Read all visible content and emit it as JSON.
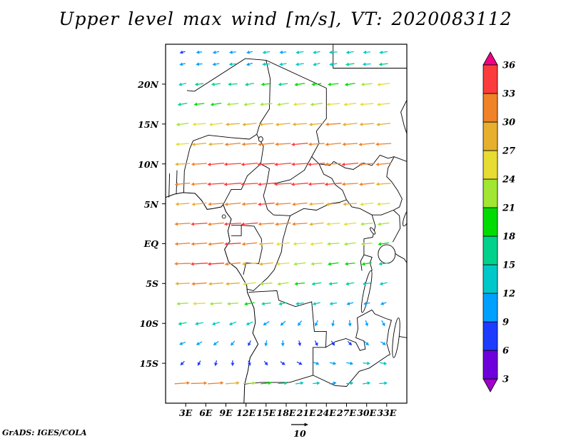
{
  "title": "Upper level max wind [m/s], VT: 2020083112",
  "attribution": "GrADS: IGES/COLA",
  "reference_vector": {
    "label": "10",
    "value": 10,
    "units": "m/s"
  },
  "axes": {
    "lat_ticks": [
      {
        "label": "20N",
        "value": 20
      },
      {
        "label": "15N",
        "value": 15
      },
      {
        "label": "10N",
        "value": 10
      },
      {
        "label": "5N",
        "value": 5
      },
      {
        "label": "EQ",
        "value": 0
      },
      {
        "label": "5S",
        "value": -5
      },
      {
        "label": "10S",
        "value": -10
      },
      {
        "label": "15S",
        "value": -15
      }
    ],
    "lon_ticks": [
      {
        "label": "3E",
        "value": 3
      },
      {
        "label": "6E",
        "value": 6
      },
      {
        "label": "9E",
        "value": 9
      },
      {
        "label": "12E",
        "value": 12
      },
      {
        "label": "15E",
        "value": 15
      },
      {
        "label": "18E",
        "value": 18
      },
      {
        "label": "21E",
        "value": 21
      },
      {
        "label": "24E",
        "value": 24
      },
      {
        "label": "27E",
        "value": 27
      },
      {
        "label": "30E",
        "value": 30
      },
      {
        "label": "33E",
        "value": 33
      }
    ],
    "lon_range": [
      0,
      36
    ],
    "lat_range": [
      -20,
      25
    ]
  },
  "chart_data": {
    "type": "vector_field",
    "title": "Upper level max wind",
    "units": "m/s",
    "valid_time": "2020083112",
    "legend_position": "right",
    "colorbar": {
      "levels": [
        3,
        6,
        9,
        12,
        15,
        18,
        21,
        24,
        27,
        30,
        33,
        36
      ],
      "colors": [
        "#a000c8",
        "#6e00dc",
        "#1e3cff",
        "#00a0ff",
        "#00c8c8",
        "#00d28c",
        "#00dc00",
        "#a0e632",
        "#e6dc32",
        "#e6af2d",
        "#f08228",
        "#fa3c3c",
        "#f00082"
      ]
    },
    "grid": {
      "lons": [
        2.5,
        5,
        7.5,
        10,
        12.5,
        15,
        17.5,
        20,
        22.5,
        25,
        27.5,
        30,
        32.5
      ],
      "lats": [
        24,
        22.5,
        20,
        17.5,
        15,
        12.5,
        10,
        7.5,
        5,
        2.5,
        0,
        -2.5,
        -5,
        -7.5,
        -10,
        -12.5,
        -15,
        -17.5
      ],
      "vectors_uv": [
        [
          [
            -8,
            -2
          ],
          [
            -9,
            -1
          ],
          [
            -10,
            -2
          ],
          [
            -11,
            -1
          ],
          [
            -9,
            -2
          ],
          [
            -12,
            -2
          ],
          [
            -11,
            -1
          ],
          [
            -13,
            -2
          ],
          [
            -12,
            -2
          ],
          [
            -14,
            -1
          ],
          [
            -13,
            -2
          ],
          [
            -12,
            -1
          ],
          [
            -14,
            -2
          ]
        ],
        [
          [
            -9,
            -2
          ],
          [
            -10,
            -1
          ],
          [
            -11,
            -2
          ],
          [
            -12,
            -1
          ],
          [
            -10,
            -3
          ],
          [
            -13,
            -1
          ],
          [
            -12,
            -2
          ],
          [
            -14,
            -2
          ],
          [
            -12,
            -3
          ],
          [
            -13,
            -2
          ],
          [
            -15,
            -2
          ],
          [
            -14,
            -1
          ],
          [
            -16,
            -2
          ]
        ],
        [
          [
            -13,
            -3
          ],
          [
            -15,
            -2
          ],
          [
            -16,
            -2
          ],
          [
            -17,
            -1
          ],
          [
            -16,
            -3
          ],
          [
            -18,
            -2
          ],
          [
            -17,
            -2
          ],
          [
            -19,
            -3
          ],
          [
            -18,
            -2
          ],
          [
            -20,
            -2
          ],
          [
            -19,
            -3
          ],
          [
            -21,
            -2
          ],
          [
            -24,
            -3
          ]
        ],
        [
          [
            -17,
            -3
          ],
          [
            -19,
            -2
          ],
          [
            -20,
            -3
          ],
          [
            -22,
            -2
          ],
          [
            -21,
            -3
          ],
          [
            -23,
            -2
          ],
          [
            -22,
            -3
          ],
          [
            -24,
            -2
          ],
          [
            -23,
            -3
          ],
          [
            -25,
            -2
          ],
          [
            -24,
            -3
          ],
          [
            -26,
            -2
          ],
          [
            -25,
            -3
          ]
        ],
        [
          [
            -23,
            -3
          ],
          [
            -25,
            -2
          ],
          [
            -26,
            -3
          ],
          [
            -27,
            -2
          ],
          [
            -28,
            -3
          ],
          [
            -27,
            -2
          ],
          [
            -29,
            -3
          ],
          [
            -28,
            -2
          ],
          [
            -29,
            -3
          ],
          [
            -30,
            -2
          ],
          [
            -29,
            -3
          ],
          [
            -28,
            -2
          ],
          [
            -27,
            -3
          ]
        ],
        [
          [
            -26,
            -2
          ],
          [
            -28,
            -3
          ],
          [
            -29,
            -2
          ],
          [
            -31,
            -3
          ],
          [
            -30,
            -2
          ],
          [
            -32,
            -3
          ],
          [
            -31,
            -2
          ],
          [
            -33,
            -3
          ],
          [
            -32,
            -2
          ],
          [
            -31,
            -3
          ],
          [
            -30,
            -2
          ],
          [
            -32,
            -3
          ],
          [
            -31,
            -2
          ]
        ],
        [
          [
            -29,
            -2
          ],
          [
            -31,
            -2
          ],
          [
            -33,
            -3
          ],
          [
            -34,
            -2
          ],
          [
            -33,
            -3
          ],
          [
            -35,
            -2
          ],
          [
            -34,
            -3
          ],
          [
            -33,
            -2
          ],
          [
            -34,
            -3
          ],
          [
            -32,
            -2
          ],
          [
            -33,
            -3
          ],
          [
            -31,
            -2
          ],
          [
            -30,
            -3
          ]
        ],
        [
          [
            -30,
            -3
          ],
          [
            -32,
            -2
          ],
          [
            -34,
            -2
          ],
          [
            -35,
            -3
          ],
          [
            -34,
            -2
          ],
          [
            -33,
            -3
          ],
          [
            -35,
            -2
          ],
          [
            -34,
            -3
          ],
          [
            -33,
            -2
          ],
          [
            -34,
            -3
          ],
          [
            -32,
            -2
          ],
          [
            -30,
            -3
          ],
          [
            -29,
            -2
          ]
        ],
        [
          [
            -27,
            -2
          ],
          [
            -29,
            -3
          ],
          [
            -31,
            -2
          ],
          [
            -32,
            -3
          ],
          [
            -30,
            -2
          ],
          [
            -33,
            -3
          ],
          [
            -31,
            -2
          ],
          [
            -30,
            -3
          ],
          [
            -29,
            -2
          ],
          [
            -28,
            -3
          ],
          [
            -27,
            -2
          ],
          [
            -26,
            -3
          ],
          [
            -25,
            -2
          ]
        ],
        [
          [
            -31,
            -2
          ],
          [
            -33,
            -2
          ],
          [
            -32,
            -3
          ],
          [
            -34,
            -2
          ],
          [
            -33,
            -3
          ],
          [
            -32,
            -2
          ],
          [
            -31,
            -3
          ],
          [
            -30,
            -2
          ],
          [
            -28,
            -3
          ],
          [
            -26,
            -2
          ],
          [
            -24,
            -3
          ],
          [
            -23,
            -2
          ],
          [
            -22,
            -3
          ]
        ],
        [
          [
            -30,
            -2
          ],
          [
            -32,
            -2
          ],
          [
            -31,
            -3
          ],
          [
            -33,
            -2
          ],
          [
            -30,
            -3
          ],
          [
            -28,
            -2
          ],
          [
            -26,
            -3
          ],
          [
            -25,
            -2
          ],
          [
            -24,
            -3
          ],
          [
            -23,
            -2
          ],
          [
            -22,
            -3
          ],
          [
            -21,
            -2
          ],
          [
            -20,
            -3
          ]
        ],
        [
          [
            -32,
            -1
          ],
          [
            -34,
            -2
          ],
          [
            -33,
            -2
          ],
          [
            -31,
            -3
          ],
          [
            -29,
            -2
          ],
          [
            -27,
            -3
          ],
          [
            -25,
            -2
          ],
          [
            -23,
            -3
          ],
          [
            -21,
            -2
          ],
          [
            -20,
            -3
          ],
          [
            -19,
            -2
          ],
          [
            -18,
            -3
          ],
          [
            -17,
            -2
          ]
        ],
        [
          [
            -28,
            -1
          ],
          [
            -30,
            -2
          ],
          [
            -29,
            -2
          ],
          [
            -27,
            -2
          ],
          [
            -25,
            -3
          ],
          [
            -23,
            -2
          ],
          [
            -21,
            -3
          ],
          [
            -19,
            -2
          ],
          [
            -17,
            -3
          ],
          [
            -16,
            -2
          ],
          [
            -15,
            -3
          ],
          [
            -14,
            -2
          ],
          [
            -13,
            -3
          ]
        ],
        [
          [
            -22,
            -2
          ],
          [
            -24,
            -1
          ],
          [
            -23,
            -2
          ],
          [
            -21,
            -2
          ],
          [
            -19,
            -3
          ],
          [
            -17,
            -2
          ],
          [
            -15,
            -3
          ],
          [
            -14,
            -2
          ],
          [
            -13,
            -3
          ],
          [
            -12,
            -2
          ],
          [
            -11,
            -3
          ],
          [
            -10,
            -2
          ],
          [
            -9,
            -3
          ]
        ],
        [
          [
            -15,
            -3
          ],
          [
            -14,
            -3
          ],
          [
            -13,
            -4
          ],
          [
            -12,
            -5
          ],
          [
            -11,
            -5
          ],
          [
            -10,
            -6
          ],
          [
            -8,
            -7
          ],
          [
            -6,
            -8
          ],
          [
            -4,
            -9
          ],
          [
            -2,
            -10
          ],
          [
            1,
            -10
          ],
          [
            3,
            -9
          ],
          [
            5,
            -9
          ]
        ],
        [
          [
            -10,
            -4
          ],
          [
            -9,
            -5
          ],
          [
            -8,
            -6
          ],
          [
            -6,
            -7
          ],
          [
            -4,
            -8
          ],
          [
            -2,
            -9
          ],
          [
            0,
            -9
          ],
          [
            2,
            -8
          ],
          [
            4,
            -8
          ],
          [
            5,
            -7
          ],
          [
            6,
            -6
          ],
          [
            7,
            -6
          ],
          [
            8,
            -5
          ]
        ],
        [
          [
            -6,
            -6
          ],
          [
            -4,
            -7
          ],
          [
            -2,
            -8
          ],
          [
            0,
            -8
          ],
          [
            3,
            -7
          ],
          [
            5,
            -6
          ],
          [
            7,
            -5
          ],
          [
            8,
            -4
          ],
          [
            9,
            -3
          ],
          [
            10,
            -2
          ],
          [
            11,
            -2
          ],
          [
            12,
            -1
          ],
          [
            12,
            -2
          ]
        ],
        [
          [
            30,
            2
          ],
          [
            32,
            1
          ],
          [
            31,
            2
          ],
          [
            27,
            2
          ],
          [
            23,
            1
          ],
          [
            20,
            2
          ],
          [
            17,
            1
          ],
          [
            14,
            2
          ],
          [
            12,
            1
          ],
          [
            11,
            2
          ],
          [
            12,
            1
          ],
          [
            13,
            2
          ],
          [
            14,
            1
          ]
        ]
      ]
    }
  }
}
